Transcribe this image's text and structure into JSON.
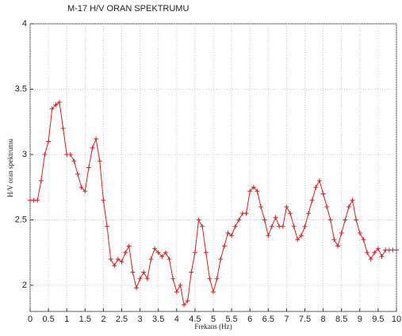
{
  "chart_data": {
    "type": "line",
    "title": "M-17 H/V ORAN SPEKTRUMU",
    "x_label": "Frekans (Hz)",
    "y_label": "H/V oran spektrumu",
    "x": [
      0,
      0.1,
      0.2,
      0.3,
      0.4,
      0.5,
      0.6,
      0.7,
      0.8,
      0.9,
      1,
      1.1,
      1.2,
      1.3,
      1.4,
      1.5,
      1.6,
      1.7,
      1.8,
      1.9,
      2,
      2.1,
      2.2,
      2.3,
      2.4,
      2.5,
      2.6,
      2.7,
      2.8,
      2.9,
      3,
      3.1,
      3.2,
      3.3,
      3.4,
      3.5,
      3.6,
      3.7,
      3.8,
      3.9,
      4,
      4.1,
      4.2,
      4.3,
      4.4,
      4.5,
      4.6,
      4.7,
      4.8,
      4.9,
      5,
      5.1,
      5.2,
      5.3,
      5.4,
      5.5,
      5.6,
      5.7,
      5.8,
      5.9,
      6,
      6.1,
      6.2,
      6.3,
      6.4,
      6.5,
      6.6,
      6.7,
      6.8,
      6.9,
      7,
      7.1,
      7.2,
      7.3,
      7.4,
      7.5,
      7.6,
      7.7,
      7.8,
      7.9,
      8,
      8.1,
      8.2,
      8.3,
      8.4,
      8.5,
      8.6,
      8.7,
      8.8,
      8.9,
      9,
      9.1,
      9.2,
      9.3,
      9.4,
      9.5,
      9.6,
      9.7,
      9.8,
      9.9,
      10
    ],
    "series": [
      {
        "color": "#d42020",
        "values": [
          2.65,
          2.65,
          2.65,
          2.8,
          3.0,
          3.1,
          3.35,
          3.38,
          3.4,
          3.2,
          3.0,
          3.0,
          2.95,
          2.85,
          2.75,
          2.72,
          2.9,
          3.05,
          3.12,
          2.95,
          2.65,
          2.45,
          2.2,
          2.15,
          2.2,
          2.18,
          2.25,
          2.3,
          2.1,
          1.98,
          2.05,
          2.1,
          2.05,
          2.2,
          2.28,
          2.25,
          2.22,
          2.25,
          2.2,
          2.05,
          1.95,
          2.0,
          1.85,
          1.88,
          2.1,
          2.25,
          2.5,
          2.45,
          2.25,
          2.05,
          1.95,
          2.05,
          2.2,
          2.3,
          2.4,
          2.38,
          2.45,
          2.5,
          2.55,
          2.55,
          2.72,
          2.75,
          2.72,
          2.6,
          2.5,
          2.38,
          2.45,
          2.52,
          2.45,
          2.45,
          2.6,
          2.55,
          2.45,
          2.35,
          2.38,
          2.45,
          2.55,
          2.65,
          2.75,
          2.8,
          2.7,
          2.6,
          2.5,
          2.35,
          2.3,
          2.4,
          2.5,
          2.6,
          2.65,
          2.5,
          2.4,
          2.35,
          2.25,
          2.2,
          2.25,
          2.28,
          2.22,
          2.27,
          2.27,
          2.27,
          2.27
        ]
      }
    ],
    "xlim": [
      0,
      10
    ],
    "xticks": [
      0,
      0.5,
      1,
      1.5,
      2,
      2.5,
      3,
      3.5,
      4,
      4.5,
      5,
      5.5,
      6,
      6.5,
      7,
      7.5,
      8,
      8.5,
      9,
      9.5,
      10
    ],
    "ylim": [
      1.8,
      4
    ],
    "yticks": [
      2,
      2.5,
      3,
      3.5,
      4
    ],
    "grid": true
  }
}
